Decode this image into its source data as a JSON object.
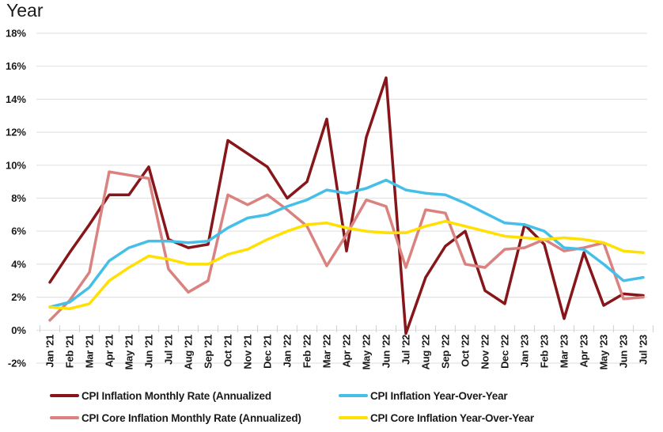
{
  "title": "Year",
  "chart_data": {
    "type": "line",
    "title": "Year",
    "xlabel": "",
    "ylabel": "",
    "ylim": [
      -2,
      18
    ],
    "y_ticks": [
      18,
      16,
      14,
      12,
      10,
      8,
      6,
      4,
      2,
      0,
      -2
    ],
    "y_tick_suffix": "%",
    "grid": true,
    "legend_position": "bottom",
    "categories": [
      "Jan '21",
      "Feb '21",
      "Mar '21",
      "Apr '21",
      "May '21",
      "Jun '21",
      "Jul '21",
      "Aug '21",
      "Sep '21",
      "Oct '21",
      "Nov '21",
      "Dec '21",
      "Jan '22",
      "Feb '22",
      "Mar '22",
      "Apr '22",
      "May '22",
      "Jun '22",
      "Jul '22",
      "Aug '22",
      "Sep '22",
      "Oct '22",
      "Nov '22",
      "Dec '22",
      "Jan '23",
      "Feb '23",
      "Mar '23",
      "Apr '23",
      "May '23",
      "Jun '23",
      "Jul '23"
    ],
    "series": [
      {
        "name": "CPI Inflation Monthly Rate (Annualized",
        "color": "#87161A",
        "values": [
          2.9,
          4.7,
          6.4,
          8.2,
          8.2,
          9.9,
          5.5,
          5.0,
          5.2,
          11.5,
          10.7,
          9.9,
          8.0,
          9.0,
          12.8,
          4.8,
          11.7,
          15.3,
          -0.2,
          3.2,
          5.1,
          6.0,
          2.4,
          1.6,
          6.4,
          5.2,
          0.7,
          4.7,
          1.5,
          2.2,
          2.1
        ]
      },
      {
        "name": "CPI Inflation Year-Over-Year",
        "color": "#45BFE8",
        "values": [
          1.4,
          1.7,
          2.6,
          4.2,
          5.0,
          5.4,
          5.4,
          5.3,
          5.4,
          6.2,
          6.8,
          7.0,
          7.5,
          7.9,
          8.5,
          8.3,
          8.6,
          9.1,
          8.5,
          8.3,
          8.2,
          7.7,
          7.1,
          6.5,
          6.4,
          6.0,
          5.0,
          4.9,
          4.0,
          3.0,
          3.2
        ]
      },
      {
        "name": "CPI Core Inflation Monthly Rate (Annualized)",
        "color": "#D9827F",
        "values": [
          0.6,
          1.8,
          3.5,
          9.6,
          9.4,
          9.2,
          3.7,
          2.3,
          3.0,
          8.2,
          7.6,
          8.2,
          7.3,
          6.3,
          3.9,
          5.8,
          7.9,
          7.5,
          3.8,
          7.3,
          7.1,
          4.0,
          3.8,
          4.9,
          5.0,
          5.5,
          4.8,
          5.0,
          5.3,
          1.9,
          2.0
        ]
      },
      {
        "name": "CPI Core Inflation Year-Over-Year",
        "color": "#FFE000",
        "values": [
          1.4,
          1.3,
          1.6,
          3.0,
          3.8,
          4.5,
          4.3,
          4.0,
          4.0,
          4.6,
          4.9,
          5.5,
          6.0,
          6.4,
          6.5,
          6.2,
          6.0,
          5.9,
          5.9,
          6.3,
          6.6,
          6.3,
          6.0,
          5.7,
          5.6,
          5.5,
          5.6,
          5.5,
          5.3,
          4.8,
          4.7
        ]
      }
    ]
  }
}
